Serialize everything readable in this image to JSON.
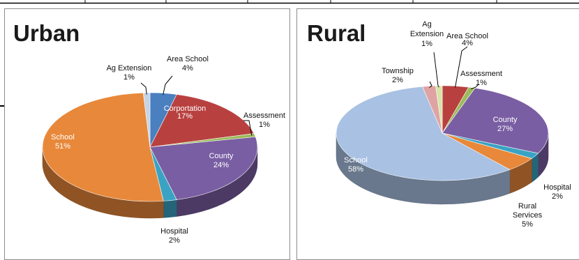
{
  "chart_data": [
    {
      "type": "pie",
      "title": "Urban",
      "slices": [
        {
          "name": "Area School",
          "value": 4,
          "label": "4%",
          "color": "#4a7fc0"
        },
        {
          "name": "Corportation",
          "value": 17,
          "label": "17%",
          "color": "#b84140"
        },
        {
          "name": "Assessment",
          "value": 1,
          "label": "1%",
          "color": "#9bbb59"
        },
        {
          "name": "County",
          "value": 24,
          "label": "24%",
          "color": "#7a5ea3"
        },
        {
          "name": "Hospital",
          "value": 2,
          "label": "2%",
          "color": "#3aa3c3"
        },
        {
          "name": "School",
          "value": 51,
          "label": "51%",
          "color": "#e8883a"
        },
        {
          "name": "Ag Extension",
          "value": 1,
          "label": "1%",
          "color": "#c6d4e6"
        }
      ]
    },
    {
      "type": "pie",
      "title": "Rural",
      "slices": [
        {
          "name": "Area School",
          "value": 4,
          "label": "4%",
          "color": "#b84140"
        },
        {
          "name": "Assessment",
          "value": 1,
          "label": "1%",
          "color": "#9bbb59"
        },
        {
          "name": "County",
          "value": 27,
          "label": "27%",
          "color": "#7a5ea3"
        },
        {
          "name": "Hospital",
          "value": 2,
          "label": "2%",
          "color": "#3aa3c3"
        },
        {
          "name": "Rural Services",
          "value": 5,
          "label": "5%",
          "color": "#e8883a"
        },
        {
          "name": "School",
          "value": 58,
          "label": "58%",
          "color": "#a9c1e3"
        },
        {
          "name": "Township",
          "value": 2,
          "label": "2%",
          "color": "#e0a3a3"
        },
        {
          "name": "Ag Extension",
          "value": 1,
          "label": "1%",
          "color": "#d8e4a8"
        }
      ]
    }
  ]
}
